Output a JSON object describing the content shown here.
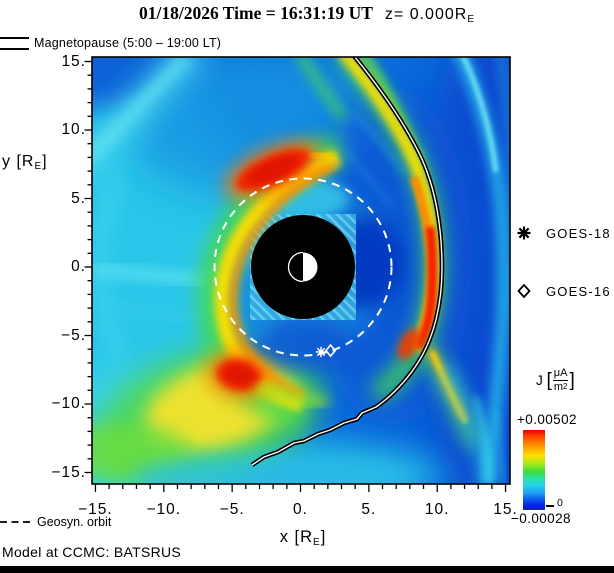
{
  "title": {
    "main": "01/18/2026 Time = 16:31:19 UT",
    "z_prefix": "z= 0.000R",
    "z_sub": "E"
  },
  "magnetopause_legend": {
    "label": "Magnetopause (5:00 – 19:00 LT)"
  },
  "axes": {
    "y": {
      "label_pre": "y [R",
      "label_sub": "E",
      "label_post": "]",
      "ticks": [
        {
          "label": "15.",
          "value": 15
        },
        {
          "label": "10.",
          "value": 10
        },
        {
          "label": "5.",
          "value": 5
        },
        {
          "label": "0.",
          "value": 0
        },
        {
          "label": "−5.",
          "value": -5
        },
        {
          "label": "−10.",
          "value": -10
        },
        {
          "label": "−15.",
          "value": -15
        }
      ]
    },
    "x": {
      "label_pre": "x [R",
      "label_sub": "E",
      "label_post": "]",
      "ticks": [
        {
          "label": "−15.",
          "value": -15
        },
        {
          "label": "−10.",
          "value": -10
        },
        {
          "label": "−5.",
          "value": -5
        },
        {
          "label": "0.",
          "value": 0
        },
        {
          "label": "5.",
          "value": 5
        },
        {
          "label": "10.",
          "value": 10
        },
        {
          "label": "15.",
          "value": 15
        }
      ]
    },
    "minor_tick_step": 1
  },
  "satellites": [
    {
      "label": "GOES-18",
      "symbol": "asterisk",
      "pos_re": [
        1.5,
        -6.2
      ]
    },
    {
      "label": "GOES-16",
      "symbol": "diamond",
      "pos_re": [
        2.2,
        -6.1
      ]
    }
  ],
  "colorbar": {
    "quantity": "J",
    "bracket_open": "[",
    "bracket_close": "]",
    "unit_num": "μA",
    "unit_den": "m",
    "unit_den_exp": "2",
    "max_label": "+0.00502",
    "min_label": "−0.00028",
    "zero_label": "0",
    "gradient": [
      "#df0000 0%",
      "#ff3b00 7%",
      "#ff9000 19%",
      "#ffe100 32%",
      "#a8e818 42%",
      "#3edc3a 52%",
      "#2adfa8 61%",
      "#27d4ea 69%",
      "#1f9ef0 79%",
      "#0b4ff2 88%",
      "#0627dc 94%",
      "#0e1fc0 100%"
    ]
  },
  "footer": {
    "geosyn_legend": "Geosyn. orbit",
    "model_label": "Model at CCMC: BATSRUS"
  },
  "chart_data": {
    "type": "heatmap",
    "title": "01/18/2026 Time = 16:31:19 UT z= 0.000RE",
    "xlabel": "x [RE]",
    "ylabel": "y [RE]",
    "xlim": [
      -15,
      15
    ],
    "ylim": [
      -15,
      15
    ],
    "grid": false,
    "colorbar": {
      "label": "J [μA/m2]",
      "max": 0.00502,
      "min": -0.00028,
      "zero_tick": 0
    },
    "overlays": {
      "magnetopause_re": [
        [
          3.7,
          15.5
        ],
        [
          5.8,
          12.9
        ],
        [
          7.8,
          10.0
        ],
        [
          9.2,
          7.0
        ],
        [
          10.1,
          3.7
        ],
        [
          10.4,
          0.0
        ],
        [
          10.0,
          -3.1
        ],
        [
          9.2,
          -5.7
        ],
        [
          8.0,
          -7.9
        ],
        [
          6.7,
          -9.5
        ],
        [
          5.5,
          -10.3
        ],
        [
          3.2,
          -11.4
        ],
        [
          1.3,
          -12.2
        ],
        [
          -0.4,
          -12.9
        ],
        [
          -2.6,
          -13.9
        ],
        [
          -3.4,
          -14.5
        ]
      ],
      "geosync_orbit_radius_re": 6.6,
      "inner_boundary_radius_re": 3.8,
      "earth_radius_re": 1.0,
      "satellites": [
        {
          "name": "GOES-18",
          "pos_re": [
            1.5,
            -6.2
          ]
        },
        {
          "name": "GOES-16",
          "pos_re": [
            2.2,
            -6.1
          ]
        }
      ]
    },
    "features": [
      {
        "desc": "ring-current crescent west/dusk of Earth, J near +0.005 μA/m2",
        "approx_center_re": [
          -6,
          0
        ]
      },
      {
        "desc": "current-density maximum (red) north of Earth",
        "approx_center_re": [
          -1.5,
          7.5
        ]
      },
      {
        "desc": "current-density maximum (red) southwest of Earth",
        "approx_center_re": [
          -4.5,
          -8
        ]
      },
      {
        "desc": "magnetopause current layer, red at subsolar nose",
        "approx_center_re": [
          10.3,
          1
        ]
      },
      {
        "desc": "bow shock cyan arc",
        "approx_center_re": [
          13.5,
          2
        ]
      },
      {
        "desc": "yellow-green fan in lower-left quadrant",
        "approx_center_re": [
          -7,
          -11
        ]
      },
      {
        "desc": "dark-blue low-J lobe east of Earth",
        "approx_center_re": [
          4.5,
          0
        ]
      }
    ]
  }
}
